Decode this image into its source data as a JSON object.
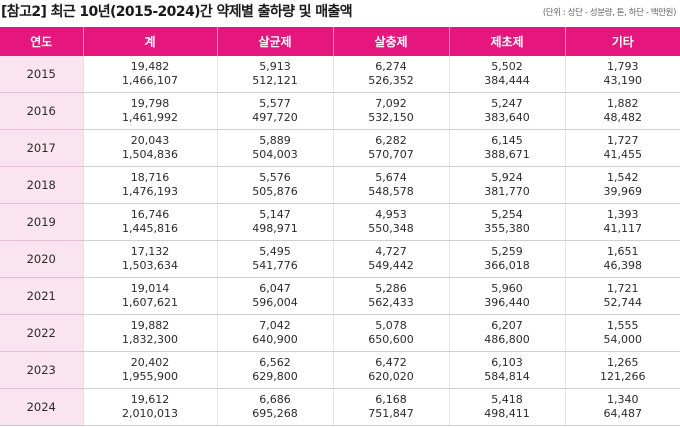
{
  "title": "[참고2] 최근 10년(2015-2024)간 약제별 출하량 및 매출액",
  "unit_note": "(단위 : 상단 - 성분량, 톤, 하단 - 백만원)",
  "headers": [
    "연도",
    "계",
    "살균제",
    "살충제",
    "제초제",
    "기타"
  ],
  "rows": [
    {
      "year": "2015",
      "total": [
        "19,482",
        "1,466,107"
      ],
      "fungicide": [
        "5,913",
        "512,121"
      ],
      "insecticide": [
        "6,274",
        "526,352"
      ],
      "herbicide": [
        "5,502",
        "384,444"
      ],
      "other": [
        "1,793",
        "43,190"
      ]
    },
    {
      "year": "2016",
      "total": [
        "19,798",
        "1,461,992"
      ],
      "fungicide": [
        "5,577",
        "497,720"
      ],
      "insecticide": [
        "7,092",
        "532,150"
      ],
      "herbicide": [
        "5,247",
        "383,640"
      ],
      "other": [
        "1,882",
        "48,482"
      ]
    },
    {
      "year": "2017",
      "total": [
        "20,043",
        "1,504,836"
      ],
      "fungicide": [
        "5,889",
        "504,003"
      ],
      "insecticide": [
        "6,282",
        "570,707"
      ],
      "herbicide": [
        "6,145",
        "388,671"
      ],
      "other": [
        "1,727",
        "41,455"
      ]
    },
    {
      "year": "2018",
      "total": [
        "18,716",
        "1,476,193"
      ],
      "fungicide": [
        "5,576",
        "505,876"
      ],
      "insecticide": [
        "5,674",
        "548,578"
      ],
      "herbicide": [
        "5,924",
        "381,770"
      ],
      "other": [
        "1,542",
        "39,969"
      ]
    },
    {
      "year": "2019",
      "total": [
        "16,746",
        "1,445,816"
      ],
      "fungicide": [
        "5,147",
        "498,971"
      ],
      "insecticide": [
        "4,953",
        "550,348"
      ],
      "herbicide": [
        "5,254",
        "355,380"
      ],
      "other": [
        "1,393",
        "41,117"
      ]
    },
    {
      "year": "2020",
      "total": [
        "17,132",
        "1,503,634"
      ],
      "fungicide": [
        "5,495",
        "541,776"
      ],
      "insecticide": [
        "4,727",
        "549,442"
      ],
      "herbicide": [
        "5,259",
        "366,018"
      ],
      "other": [
        "1,651",
        "46,398"
      ]
    },
    {
      "year": "2021",
      "total": [
        "19,014",
        "1,607,621"
      ],
      "fungicide": [
        "6,047",
        "596,004"
      ],
      "insecticide": [
        "5,286",
        "562,433"
      ],
      "herbicide": [
        "5,960",
        "396,440"
      ],
      "other": [
        "1,721",
        "52,744"
      ]
    },
    {
      "year": "2022",
      "total": [
        "19,882",
        "1,832,300"
      ],
      "fungicide": [
        "7,042",
        "640,900"
      ],
      "insecticide": [
        "5,078",
        "650,600"
      ],
      "herbicide": [
        "6,207",
        "486,800"
      ],
      "other": [
        "1,555",
        "54,000"
      ]
    },
    {
      "year": "2023",
      "total": [
        "20,402",
        "1,955,900"
      ],
      "fungicide": [
        "6,562",
        "629,800"
      ],
      "insecticide": [
        "6,472",
        "620,020"
      ],
      "herbicide": [
        "6,103",
        "584,814"
      ],
      "other": [
        "1,265",
        "121,266"
      ]
    },
    {
      "year": "2024",
      "total": [
        "19,612",
        "2,010,013"
      ],
      "fungicide": [
        "6,686",
        "695,268"
      ],
      "insecticide": [
        "6,168",
        "751,847"
      ],
      "herbicide": [
        "5,418",
        "498,411"
      ],
      "other": [
        "1,340",
        "64,487"
      ]
    }
  ],
  "colors": {
    "header_bg": "#e5177e",
    "year_bg": "#f9e4ef"
  }
}
